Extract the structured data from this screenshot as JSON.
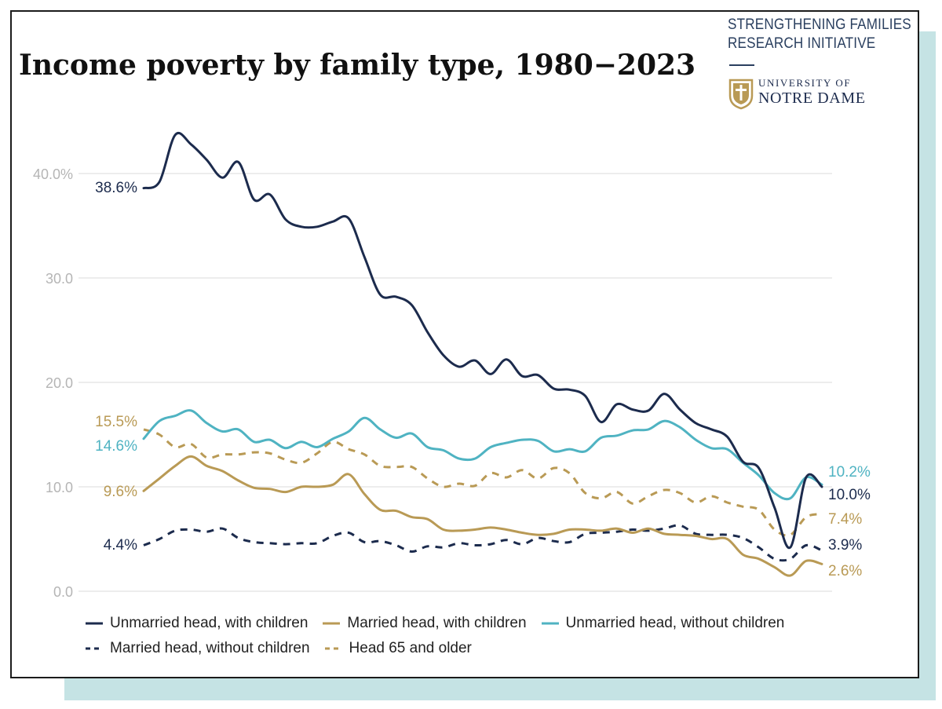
{
  "title": "Income poverty by family type, 1980−2023",
  "branding": {
    "line1": "STRENGTHENING FAMILIES",
    "line2": "RESEARCH INITIATIVE",
    "university_line1": "UNIVERSITY OF",
    "university_line2": "NOTRE DAME"
  },
  "colors": {
    "navy": "#1c2b4d",
    "gold": "#b99a55",
    "teal": "#4fb3c2",
    "grid": "#e2e2e2",
    "tick": "#b5b5b5",
    "accent_bg": "#c5e3e4"
  },
  "chart_data": {
    "type": "line",
    "title": "Income poverty by family type, 1980−2023",
    "xlabel": "",
    "ylabel": "",
    "xlim": [
      1980,
      2023
    ],
    "ylim": [
      0,
      45
    ],
    "y_ticks": [
      0,
      10,
      20,
      30,
      40
    ],
    "y_tick_labels": [
      "0.0",
      "10.0",
      "20.0",
      "30.0",
      "40.0%"
    ],
    "grid": true,
    "x": [
      1980,
      1981,
      1982,
      1983,
      1984,
      1985,
      1986,
      1987,
      1988,
      1989,
      1990,
      1991,
      1992,
      1993,
      1994,
      1995,
      1996,
      1997,
      1998,
      1999,
      2000,
      2001,
      2002,
      2003,
      2004,
      2005,
      2006,
      2007,
      2008,
      2009,
      2010,
      2011,
      2012,
      2013,
      2014,
      2015,
      2016,
      2017,
      2018,
      2019,
      2020,
      2021,
      2022,
      2023
    ],
    "series": [
      {
        "name": "Unmarried head, with children",
        "color": "#1c2b4d",
        "style": "solid",
        "values": [
          38.6,
          39.2,
          43.7,
          42.8,
          41.3,
          39.6,
          41.1,
          37.5,
          38.0,
          35.6,
          34.9,
          34.9,
          35.4,
          35.7,
          32.0,
          28.4,
          28.2,
          27.4,
          24.8,
          22.6,
          21.5,
          22.1,
          20.8,
          22.2,
          20.6,
          20.7,
          19.4,
          19.3,
          18.7,
          16.2,
          17.9,
          17.4,
          17.3,
          18.9,
          17.4,
          16.1,
          15.5,
          14.8,
          12.4,
          11.8,
          8.0,
          4.2,
          10.9,
          10.0
        ],
        "start_label": "38.6%",
        "end_label": "10.0%"
      },
      {
        "name": "Married head, with children",
        "color": "#b99a55",
        "style": "solid",
        "values": [
          9.6,
          10.8,
          12.0,
          12.9,
          12.0,
          11.5,
          10.6,
          9.9,
          9.8,
          9.5,
          10.0,
          10.0,
          10.2,
          11.2,
          9.3,
          7.8,
          7.7,
          7.1,
          6.9,
          5.9,
          5.8,
          5.9,
          6.1,
          5.9,
          5.6,
          5.4,
          5.5,
          5.9,
          5.9,
          5.8,
          6.0,
          5.6,
          6.0,
          5.5,
          5.4,
          5.3,
          5.0,
          5.0,
          3.5,
          3.1,
          2.3,
          1.5,
          2.9,
          2.6
        ],
        "start_label": "9.6%",
        "end_label": "2.6%"
      },
      {
        "name": "Unmarried head, without children",
        "color": "#4fb3c2",
        "style": "solid",
        "values": [
          14.6,
          16.3,
          16.8,
          17.3,
          16.1,
          15.3,
          15.5,
          14.3,
          14.5,
          13.7,
          14.3,
          13.8,
          14.6,
          15.3,
          16.6,
          15.5,
          14.7,
          15.1,
          13.8,
          13.5,
          12.7,
          12.7,
          13.8,
          14.2,
          14.5,
          14.4,
          13.4,
          13.6,
          13.4,
          14.7,
          14.9,
          15.4,
          15.5,
          16.3,
          15.7,
          14.5,
          13.7,
          13.6,
          12.3,
          11.1,
          9.4,
          8.9,
          10.9,
          10.2
        ],
        "start_label": "14.6%",
        "end_label": "10.2%"
      },
      {
        "name": "Married head, without children",
        "color": "#1c2b4d",
        "style": "dashed",
        "values": [
          4.4,
          5.0,
          5.8,
          5.9,
          5.7,
          6.0,
          5.1,
          4.7,
          4.6,
          4.5,
          4.6,
          4.6,
          5.3,
          5.6,
          4.7,
          4.8,
          4.4,
          3.8,
          4.3,
          4.2,
          4.6,
          4.4,
          4.5,
          4.9,
          4.5,
          5.1,
          4.8,
          4.7,
          5.5,
          5.6,
          5.7,
          5.9,
          5.8,
          6.0,
          6.3,
          5.5,
          5.4,
          5.4,
          5.1,
          4.2,
          3.1,
          3.1,
          4.4,
          3.9
        ],
        "start_label": "4.4%",
        "end_label": "3.9%"
      },
      {
        "name": "Head 65 and older",
        "color": "#b99a55",
        "style": "dashed",
        "values": [
          15.5,
          15.0,
          13.8,
          14.1,
          12.8,
          13.1,
          13.1,
          13.3,
          13.2,
          12.6,
          12.3,
          13.2,
          14.3,
          13.6,
          13.1,
          12.0,
          11.9,
          11.9,
          10.8,
          10.0,
          10.3,
          10.1,
          11.3,
          10.9,
          11.6,
          10.8,
          11.8,
          11.3,
          9.4,
          8.9,
          9.5,
          8.4,
          9.1,
          9.7,
          9.4,
          8.5,
          9.1,
          8.5,
          8.1,
          7.8,
          5.9,
          5.4,
          7.1,
          7.4
        ],
        "start_label": "15.5%",
        "end_label": "7.4%"
      }
    ],
    "legend_position": "bottom"
  },
  "legend": [
    {
      "label": "Unmarried head, with children",
      "color": "#1c2b4d",
      "style": "solid"
    },
    {
      "label": "Married head, with children",
      "color": "#b99a55",
      "style": "solid"
    },
    {
      "label": "Unmarried head, without children",
      "color": "#4fb3c2",
      "style": "solid"
    },
    {
      "label": "Married head, without children",
      "color": "#1c2b4d",
      "style": "dashed"
    },
    {
      "label": "Head 65 and older",
      "color": "#b99a55",
      "style": "dashed"
    }
  ]
}
